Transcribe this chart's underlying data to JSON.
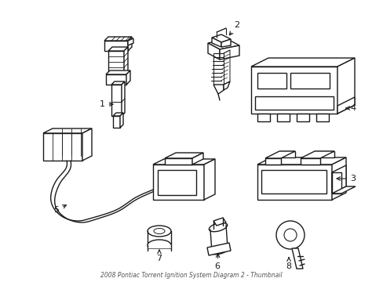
{
  "background_color": "#ffffff",
  "line_color": "#1a1a1a",
  "line_width": 1.0,
  "fig_width": 4.89,
  "fig_height": 3.6,
  "dpi": 100,
  "bottom_text": "2008 Pontiac Torrent Ignition System Diagram 2 - Thumbnail"
}
